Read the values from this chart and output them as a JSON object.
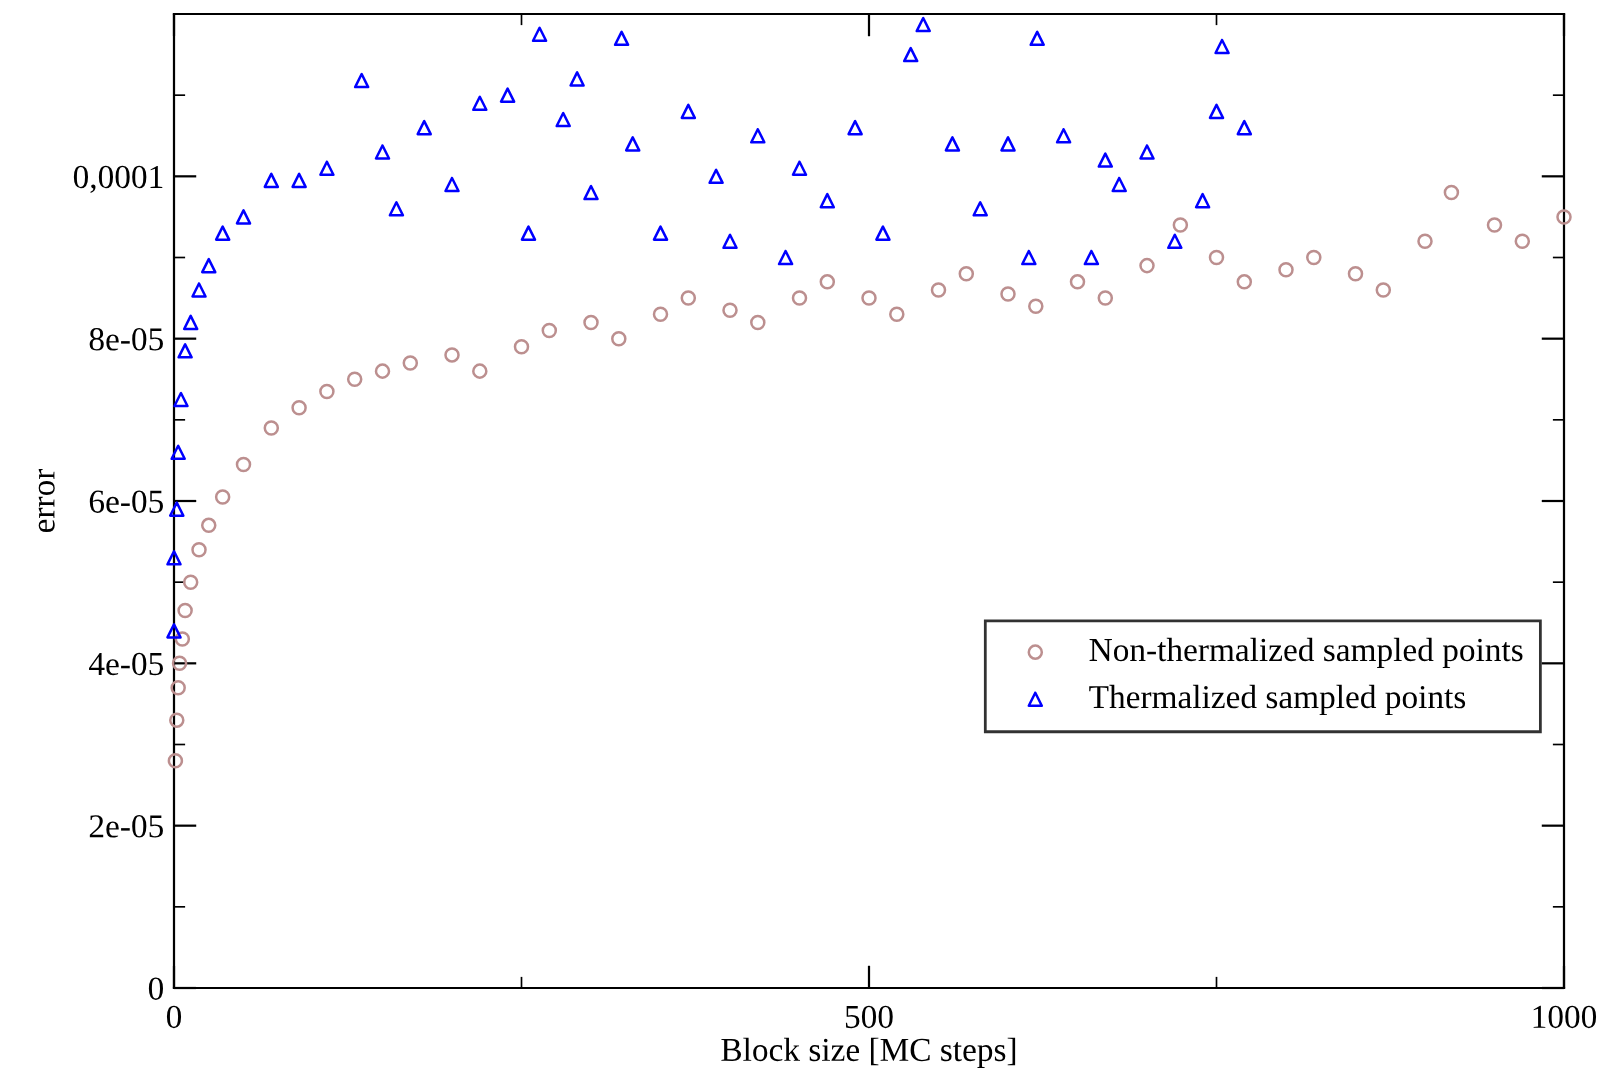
{
  "chart_data": {
    "type": "scatter",
    "xlabel": "Block size [MC steps]",
    "ylabel": "error",
    "xlim": [
      0,
      1000
    ],
    "xticks": [
      0,
      500,
      1000
    ],
    "ylim": [
      0,
      0.00012
    ],
    "yticks": [
      {
        "value": 0,
        "label": "0"
      },
      {
        "value": 2e-05,
        "label": "2e-05"
      },
      {
        "value": 4e-05,
        "label": "4e-05"
      },
      {
        "value": 6e-05,
        "label": "6e-05"
      },
      {
        "value": 8e-05,
        "label": "8e-05"
      },
      {
        "value": 0.0001,
        "label": "0,0001"
      }
    ],
    "grid": false,
    "legend": "right",
    "series": [
      {
        "name": "Non-thermalized sampled points",
        "color": "#bc8f8f",
        "marker": "circle",
        "x": [
          1,
          2,
          3,
          4,
          6,
          8,
          12,
          18,
          25,
          35,
          50,
          70,
          90,
          110,
          130,
          150,
          170,
          200,
          220,
          250,
          270,
          300,
          320,
          350,
          370,
          400,
          420,
          450,
          470,
          500,
          520,
          550,
          570,
          600,
          620,
          650,
          670,
          700,
          724,
          750,
          770,
          800,
          820,
          850,
          870,
          900,
          919,
          950,
          970,
          1000
        ],
        "values": [
          2.8e-05,
          3.3e-05,
          3.7e-05,
          4e-05,
          4.3e-05,
          4.65e-05,
          5e-05,
          5.4e-05,
          5.7e-05,
          6.05e-05,
          6.45e-05,
          6.9e-05,
          7.15e-05,
          7.35e-05,
          7.5e-05,
          7.6e-05,
          7.7e-05,
          7.8e-05,
          7.6e-05,
          7.9e-05,
          8.1e-05,
          8.2e-05,
          8e-05,
          8.3e-05,
          8.5e-05,
          8.35e-05,
          8.2e-05,
          8.5e-05,
          8.7e-05,
          8.5e-05,
          8.3e-05,
          8.6e-05,
          8.8e-05,
          8.55e-05,
          8.4e-05,
          8.7e-05,
          8.5e-05,
          8.9e-05,
          9.4e-05,
          9e-05,
          8.7e-05,
          8.85e-05,
          9e-05,
          8.8e-05,
          8.6e-05,
          9.2e-05,
          9.8e-05,
          9.4e-05,
          9.2e-05,
          9.5e-05
        ]
      },
      {
        "name": "Thermalized sampled points",
        "color": "#0000ff",
        "marker": "triangle",
        "x": [
          0,
          0,
          2,
          3,
          5,
          8,
          12,
          18,
          25,
          35,
          50,
          70,
          90,
          110,
          135,
          150,
          160,
          180,
          200,
          220,
          240,
          255,
          263,
          280,
          290,
          300,
          322,
          330,
          350,
          370,
          390,
          400,
          420,
          440,
          450,
          470,
          490,
          510,
          530,
          539,
          560,
          580,
          600,
          615,
          621,
          640,
          660,
          670,
          680,
          700,
          720,
          740,
          750,
          754,
          770
        ],
        "values": [
          4.4e-05,
          5.3e-05,
          5.9e-05,
          6.6e-05,
          7.25e-05,
          7.85e-05,
          8.2e-05,
          8.6e-05,
          8.9e-05,
          9.3e-05,
          9.5e-05,
          9.95e-05,
          9.95e-05,
          0.000101,
          0.0001118,
          0.000103,
          9.6e-05,
          0.000106,
          9.9e-05,
          0.000109,
          0.00011,
          9.3e-05,
          0.0001175,
          0.000107,
          0.000112,
          9.8e-05,
          0.000117,
          0.000104,
          9.3e-05,
          0.000108,
          0.0001,
          9.2e-05,
          0.000105,
          9e-05,
          0.000101,
          9.7e-05,
          0.000106,
          9.3e-05,
          0.000115,
          0.0001187,
          0.000104,
          9.6e-05,
          0.000104,
          9e-05,
          0.000117,
          0.000105,
          9e-05,
          0.000102,
          9.9e-05,
          0.000103,
          9.2e-05,
          9.7e-05,
          0.000108,
          0.000116,
          0.000106
        ]
      }
    ]
  }
}
